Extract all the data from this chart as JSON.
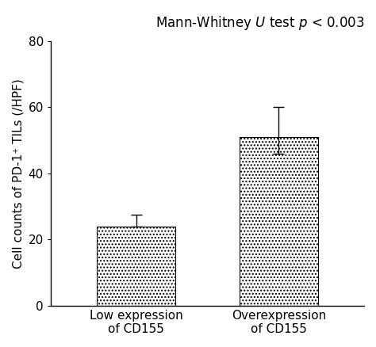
{
  "categories": [
    "Low expression\nof CD155",
    "Overexpression\nof CD155"
  ],
  "values": [
    24.0,
    51.0
  ],
  "errors_upper": [
    3.5,
    9.0
  ],
  "errors_lower": [
    0,
    5.0
  ],
  "ylim": [
    0,
    80
  ],
  "yticks": [
    0,
    20,
    40,
    60,
    80
  ],
  "ylabel": "Cell counts of PD-1⁺ TILs (/HPF)",
  "anno_text": "Mann-Whitney $\\it{U}$ test $\\it{p}$ < 0.003",
  "bar_hatch": "....",
  "background_color": "#ffffff",
  "bar_width": 0.55,
  "figsize": [
    4.74,
    4.38
  ],
  "dpi": 100,
  "fontsize": 11,
  "anno_fontsize": 12
}
